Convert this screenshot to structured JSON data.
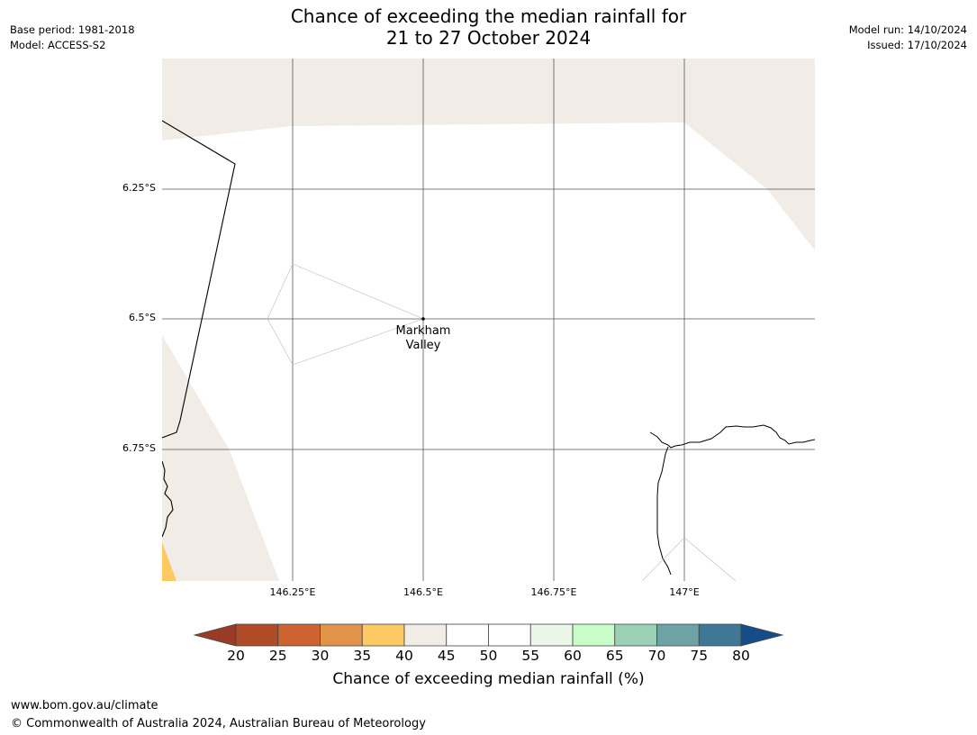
{
  "title": {
    "line1": "Chance of exceeding the median rainfall for",
    "line2": "21 to 27 October 2024"
  },
  "meta_left": {
    "base_period": "Base period: 1981-2018",
    "model": "Model: ACCESS-S2"
  },
  "meta_right": {
    "model_run": "Model run: 14/10/2024",
    "issued": "Issued: 17/10/2024"
  },
  "map": {
    "latitude_labels": [
      "6.25°S",
      "6.5°S",
      "6.75°S"
    ],
    "longitude_labels": [
      "146.25°E",
      "146.5°E",
      "146.75°E",
      "147°E"
    ],
    "place": {
      "line1": "Markham",
      "line2": "Valley"
    },
    "land_colors": {
      "category_40_45": "#f1ece6",
      "category_35_40": "#fdc962",
      "category_45_55": "#ffffff"
    }
  },
  "colorbar": {
    "label": "Chance of exceeding median rainfall (%)",
    "ticks": [
      "20",
      "25",
      "30",
      "35",
      "40",
      "45",
      "50",
      "55",
      "60",
      "65",
      "70",
      "75",
      "80"
    ],
    "colors": [
      "#b14a27",
      "#cc6331",
      "#e19449",
      "#fdc962",
      "#f1ece6",
      "#ffffff",
      "#ffffff",
      "#e9f6e8",
      "#c8fcc9",
      "#9bcfb6",
      "#6ea3a5",
      "#3f7896"
    ],
    "under_color": "#983c25",
    "over_color": "#154d89"
  },
  "footer": {
    "url": "www.bom.gov.au/climate",
    "copyright": "© Commonwealth of Australia 2024, Australian Bureau of Meteorology"
  }
}
